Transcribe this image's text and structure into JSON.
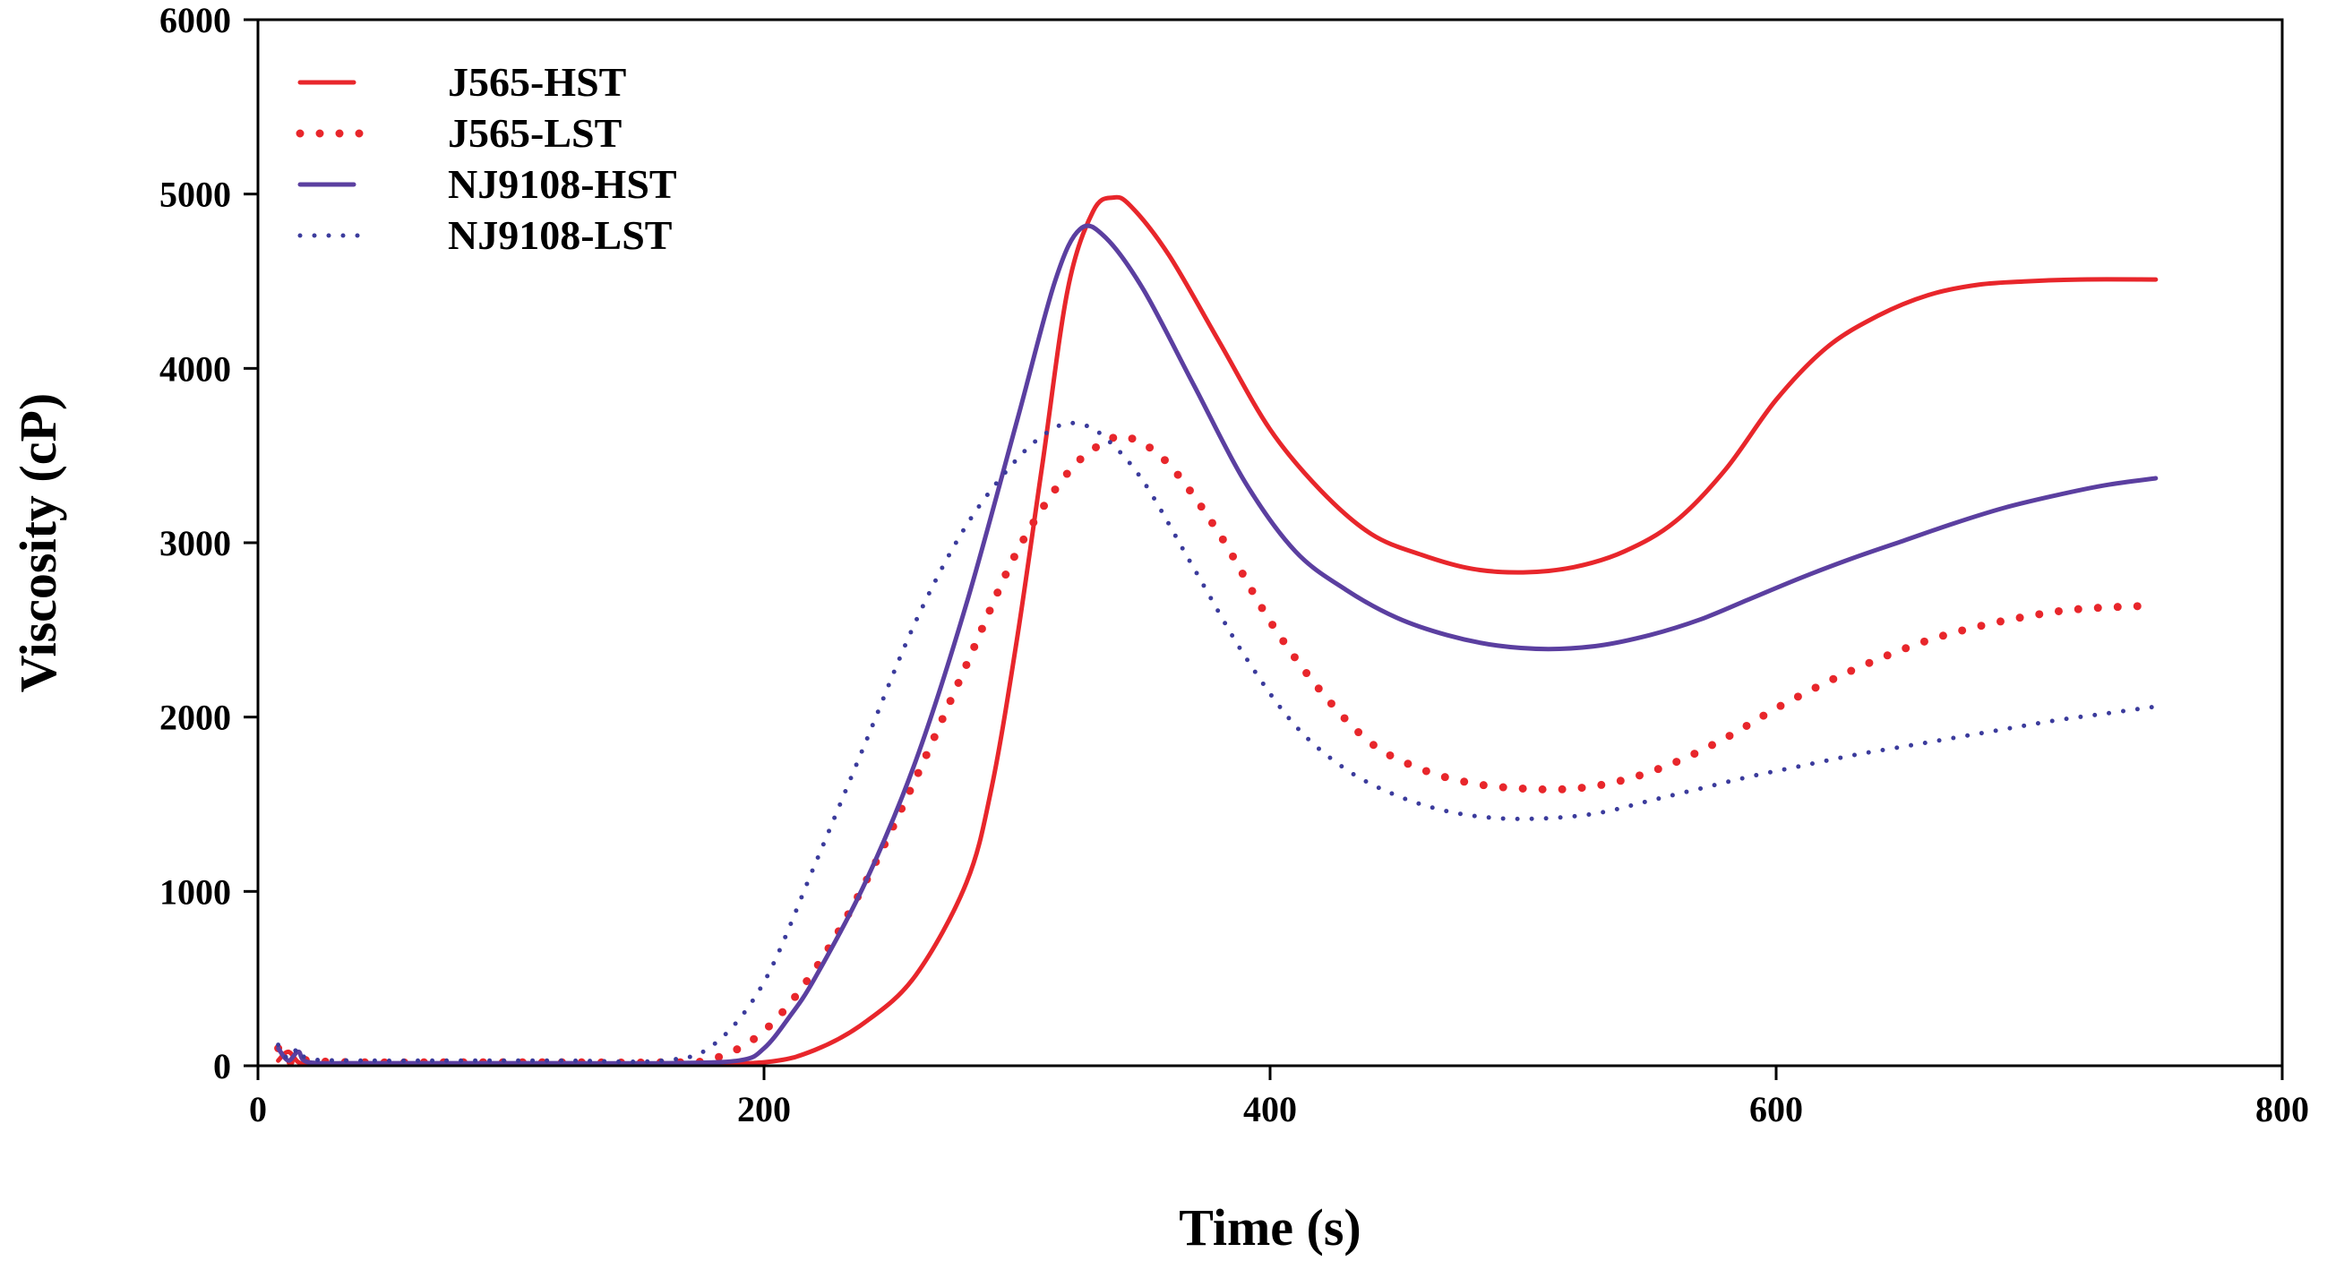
{
  "chart_data": {
    "type": "line",
    "title": "",
    "xlabel": "Time (s)",
    "ylabel": "Viscosity (cP)",
    "xlim": [
      0,
      800
    ],
    "ylim": [
      0,
      6000
    ],
    "xticks": [
      0,
      200,
      400,
      600,
      800
    ],
    "yticks": [
      0,
      1000,
      2000,
      3000,
      4000,
      5000,
      6000
    ],
    "grid": false,
    "legend_position": "top-left",
    "series": [
      {
        "name": "J565-HST",
        "color": "#e8262b",
        "style": "solid",
        "x": [
          8,
          12,
          16,
          20,
          40,
          80,
          120,
          160,
          200,
          220,
          240,
          260,
          280,
          290,
          300,
          310,
          320,
          330,
          338,
          345,
          360,
          380,
          400,
          420,
          440,
          460,
          480,
          500,
          520,
          540,
          560,
          580,
          600,
          620,
          640,
          660,
          680,
          700,
          720,
          750
        ],
        "y": [
          30,
          80,
          20,
          15,
          10,
          10,
          10,
          10,
          20,
          90,
          250,
          520,
          1050,
          1600,
          2450,
          3450,
          4450,
          4900,
          4980,
          4930,
          4650,
          4150,
          3650,
          3300,
          3050,
          2930,
          2850,
          2830,
          2860,
          2950,
          3120,
          3420,
          3820,
          4120,
          4300,
          4420,
          4480,
          4500,
          4510,
          4510
        ]
      },
      {
        "name": "J565-LST",
        "color": "#e8262b",
        "style": "dotted",
        "x": [
          8,
          12,
          16,
          20,
          40,
          80,
          120,
          160,
          180,
          200,
          220,
          240,
          260,
          280,
          300,
          320,
          335,
          345,
          360,
          380,
          400,
          420,
          440,
          460,
          480,
          500,
          520,
          540,
          560,
          580,
          600,
          620,
          640,
          660,
          680,
          700,
          720,
          750
        ],
        "y": [
          100,
          20,
          60,
          30,
          20,
          20,
          20,
          20,
          40,
          200,
          550,
          1050,
          1650,
          2300,
          2950,
          3400,
          3580,
          3600,
          3450,
          3050,
          2550,
          2150,
          1850,
          1700,
          1620,
          1590,
          1590,
          1640,
          1740,
          1880,
          2050,
          2200,
          2330,
          2440,
          2520,
          2580,
          2620,
          2640
        ]
      },
      {
        "name": "NJ9108-HST",
        "color": "#5b3fa0",
        "style": "solid",
        "x": [
          8,
          12,
          16,
          20,
          40,
          80,
          120,
          160,
          190,
          200,
          210,
          220,
          240,
          260,
          280,
          300,
          315,
          325,
          335,
          350,
          370,
          390,
          410,
          430,
          450,
          470,
          490,
          510,
          530,
          550,
          570,
          590,
          610,
          630,
          650,
          670,
          690,
          710,
          730,
          750
        ],
        "y": [
          100,
          30,
          80,
          20,
          15,
          15,
          15,
          15,
          30,
          100,
          280,
          500,
          1050,
          1750,
          2650,
          3700,
          4500,
          4800,
          4750,
          4450,
          3900,
          3350,
          2950,
          2730,
          2570,
          2470,
          2410,
          2390,
          2410,
          2470,
          2560,
          2680,
          2800,
          2910,
          3010,
          3110,
          3200,
          3270,
          3330,
          3370
        ]
      },
      {
        "name": "NJ9108-LST",
        "color": "#3b3b9c",
        "style": "dotted",
        "x": [
          8,
          12,
          16,
          20,
          40,
          80,
          120,
          160,
          180,
          200,
          220,
          240,
          260,
          280,
          300,
          315,
          325,
          335,
          350,
          370,
          390,
          410,
          430,
          450,
          470,
          490,
          510,
          530,
          550,
          570,
          590,
          610,
          630,
          650,
          670,
          690,
          710,
          730,
          750
        ],
        "y": [
          120,
          40,
          100,
          40,
          30,
          30,
          30,
          30,
          120,
          480,
          1150,
          1850,
          2550,
          3100,
          3480,
          3660,
          3680,
          3600,
          3350,
          2850,
          2350,
          1950,
          1700,
          1550,
          1460,
          1420,
          1420,
          1450,
          1520,
          1590,
          1660,
          1720,
          1780,
          1830,
          1880,
          1930,
          1980,
          2020,
          2060
        ]
      }
    ]
  }
}
